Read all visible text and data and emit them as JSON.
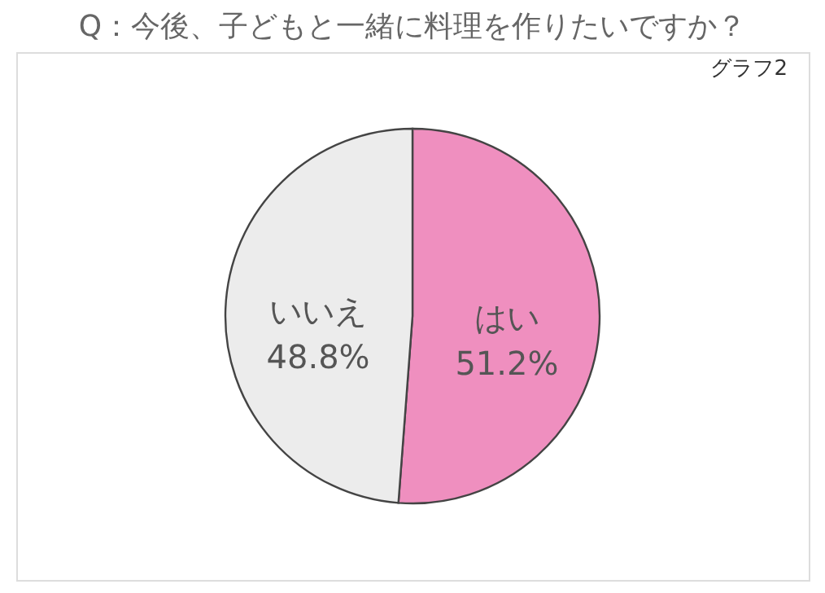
{
  "chart_data": {
    "type": "pie",
    "title": "Q：今後、子どもと一緒に料理を作りたいですか？",
    "categories": [
      "はい",
      "いいえ"
    ],
    "values": [
      51.2,
      48.8
    ],
    "colors": [
      "#ef8fbf",
      "#ececec"
    ],
    "value_labels": [
      "51.2%",
      "48.8%"
    ],
    "annotations": [
      "グラフ2"
    ],
    "legend": false
  }
}
